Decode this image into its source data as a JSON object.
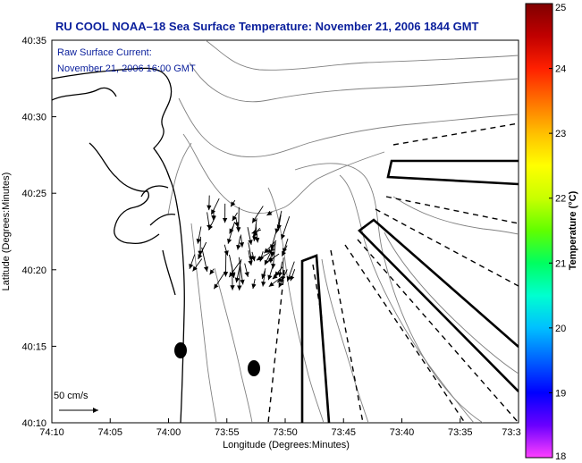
{
  "title": "RU COOL  NOAA–18  Sea Surface Temperature:  November 21, 2006 1844 GMT",
  "annotation": {
    "line1": "Raw Surface Current:",
    "line2": "November 21, 2006 16:00 GMT"
  },
  "axes": {
    "xlabel": "Longitude (Degrees:Minutes)",
    "ylabel": "Latitude (Degrees:Minutes)",
    "xticks": [
      "74:10",
      "74:05",
      "74:00",
      "73:55",
      "73:50",
      "73:45",
      "73:40",
      "73:35",
      "73:3"
    ],
    "yticks": [
      "40:35",
      "40:30",
      "40:25",
      "40:20",
      "40:15",
      "40:10"
    ]
  },
  "scale_label": "50 cm/s",
  "colorbar": {
    "title": "Temperature (°C)",
    "ticks": [
      "25",
      "24",
      "23",
      "22",
      "21",
      "20",
      "19",
      "18"
    ],
    "range": [
      18,
      25
    ],
    "colors": [
      "#ff40ff",
      "#6a00ff",
      "#0000ff",
      "#0060ff",
      "#00c0ff",
      "#00ffd0",
      "#00ff60",
      "#60ff00",
      "#c8ff00",
      "#ffff00",
      "#ffc000",
      "#ff7000",
      "#ff2000",
      "#c00000",
      "#800000"
    ]
  },
  "map_colors": {
    "background": "#ffffff",
    "coastline": "#000000",
    "bathymetry": "#808080",
    "vectors": "#000000"
  }
}
